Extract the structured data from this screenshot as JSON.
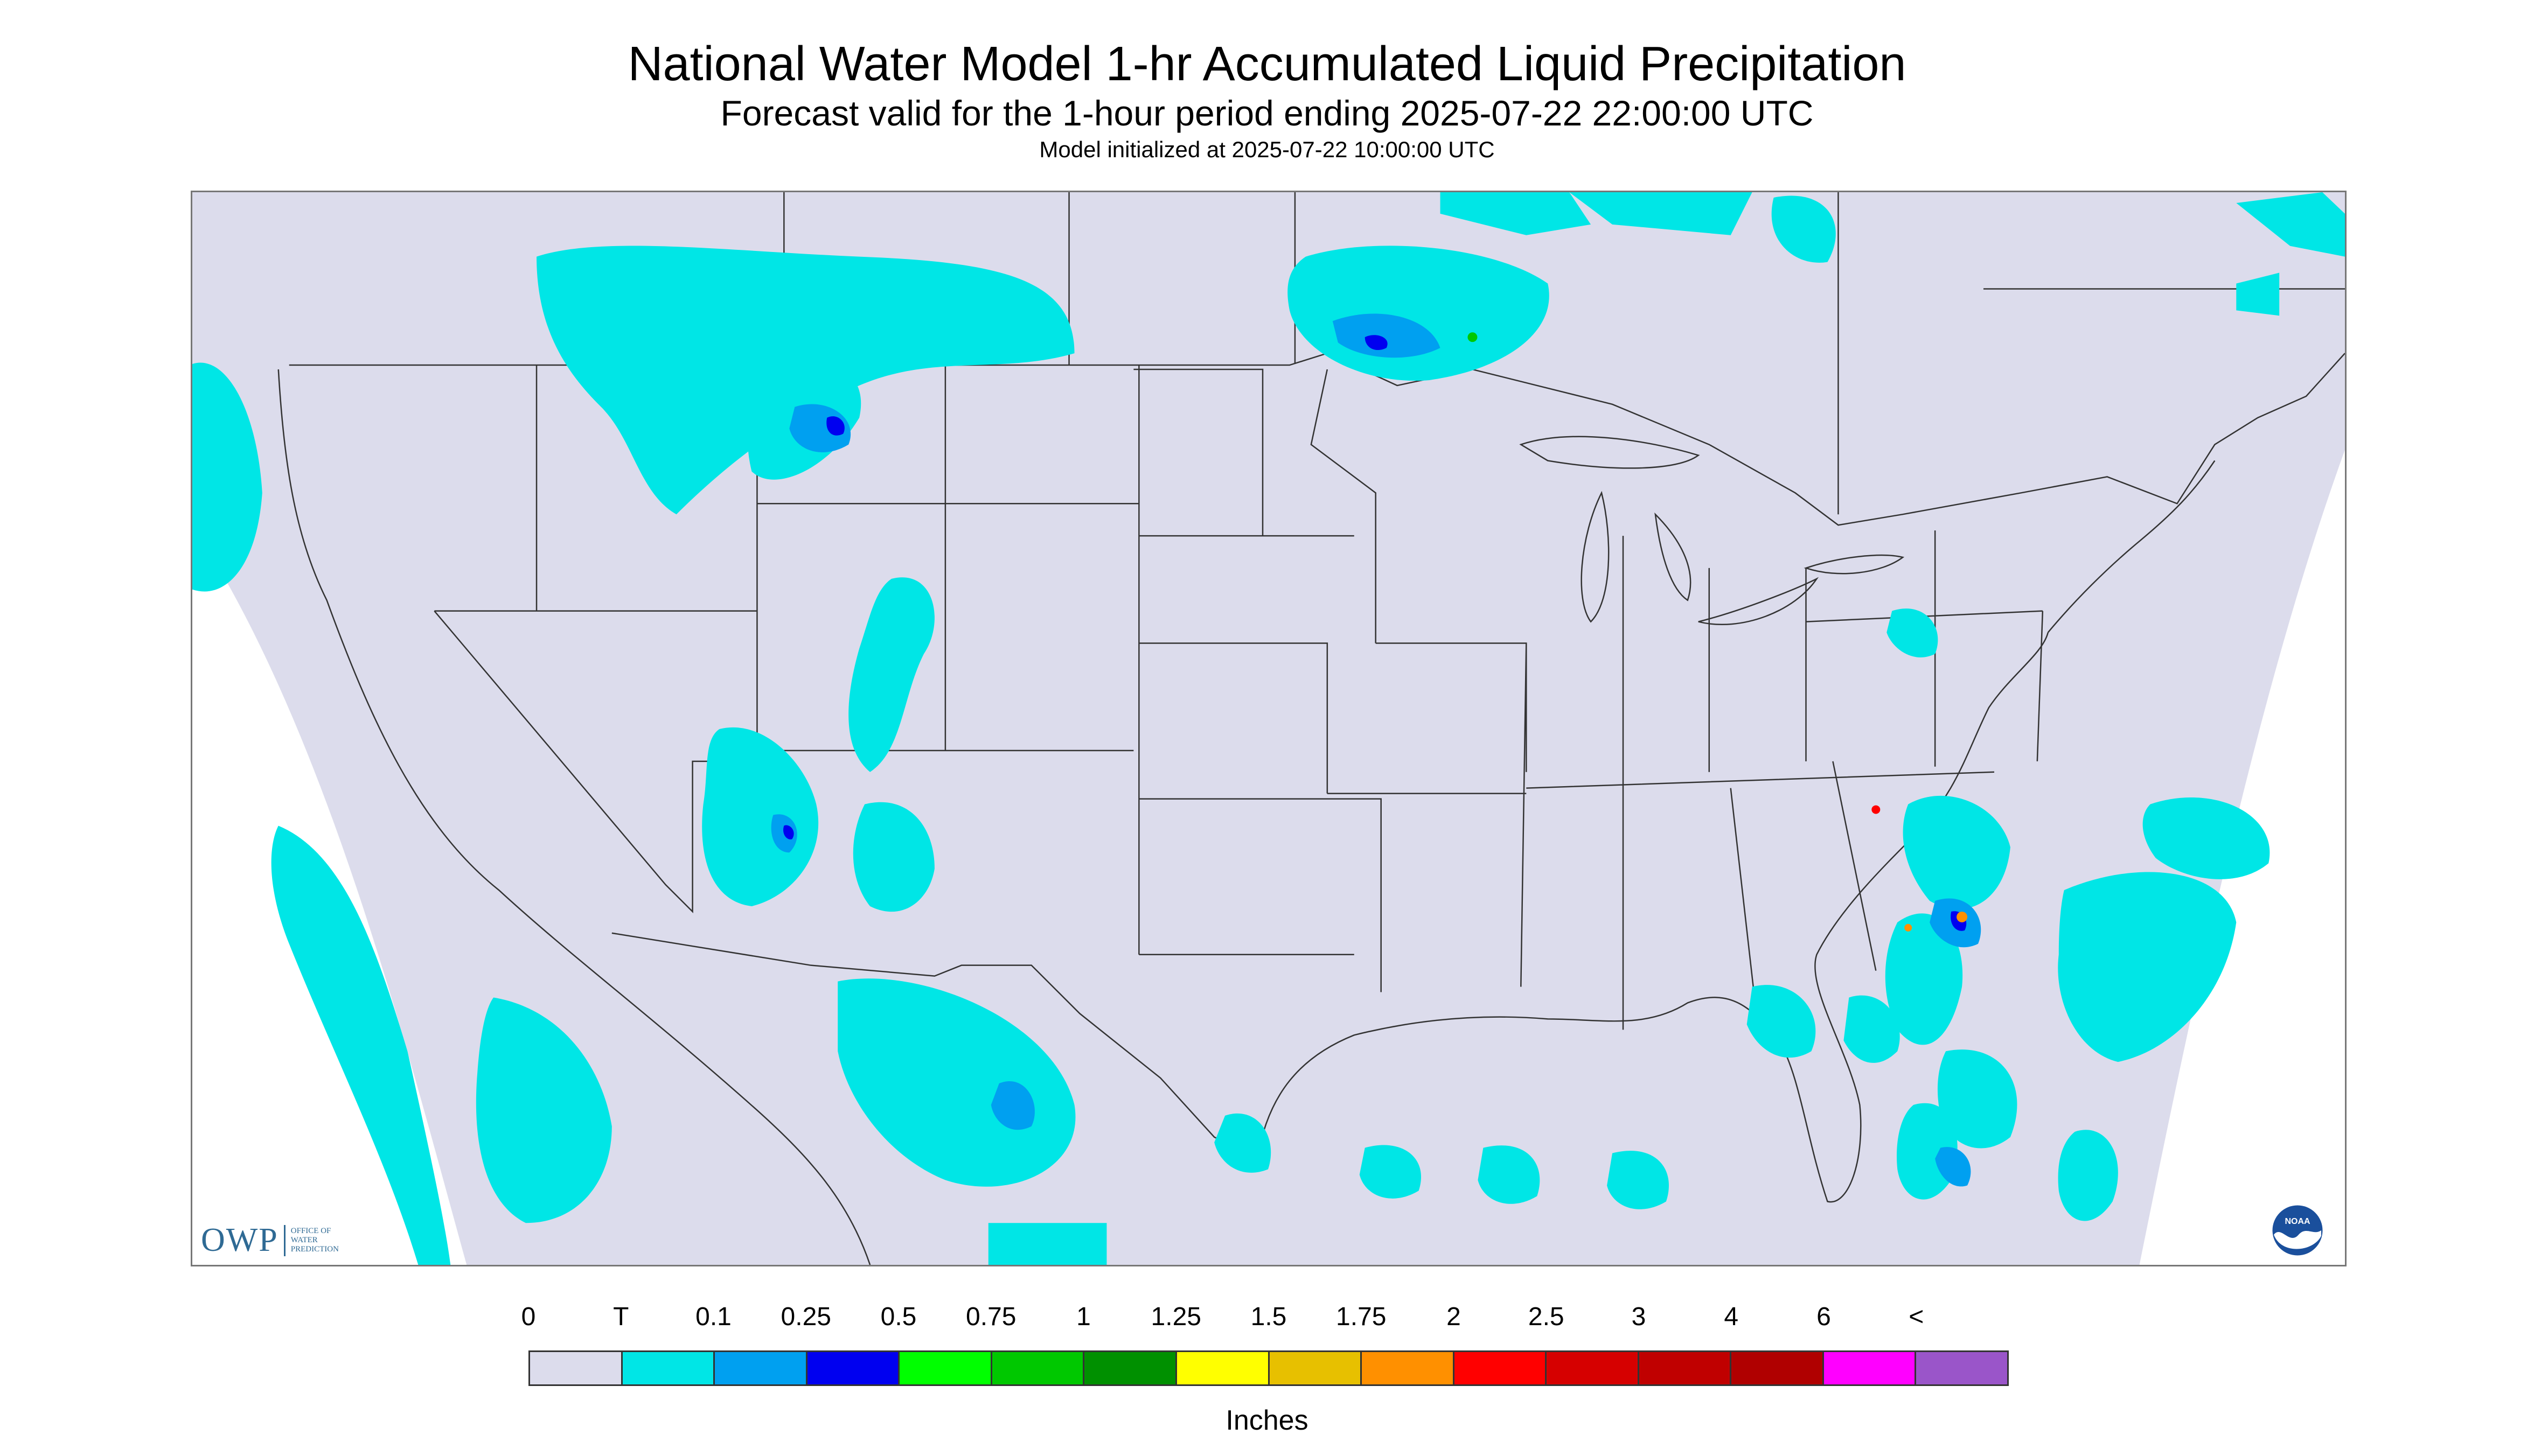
{
  "title": "National Water Model 1-hr Accumulated Liquid Precipitation",
  "subtitle": "Forecast valid for the 1-hour period ending 2025-07-22 22:00:00 UTC",
  "init_text": "Model initialized at 2025-07-22 10:00:00 UTC",
  "owp": {
    "mark": "OWP",
    "line1": "OFFICE OF",
    "line2": "WATER",
    "line3": "PREDICTION"
  },
  "noaa": {
    "label": "NOAA"
  },
  "legend": {
    "units": "Inches",
    "labels": [
      "0",
      "T",
      "0.1",
      "0.25",
      "0.5",
      "0.75",
      "1",
      "1.25",
      "1.5",
      "1.75",
      "2",
      "2.5",
      "3",
      "4",
      "6",
      "<"
    ],
    "colors": [
      "#dcdcec",
      "#00e6e6",
      "#00a0f0",
      "#0000f0",
      "#00ff00",
      "#00c800",
      "#009000",
      "#ffff00",
      "#e7c000",
      "#ff9000",
      "#ff0000",
      "#d60000",
      "#c00000",
      "#b00000",
      "#ff00ff",
      "#9a55c9"
    ]
  },
  "colors": {
    "map_bg": "#dcdcec",
    "outside": "#ffffff",
    "precip_trace": "#00e6e6",
    "precip_light": "#00a0f0",
    "precip_mod": "#0000f0",
    "borders": "#333333"
  }
}
